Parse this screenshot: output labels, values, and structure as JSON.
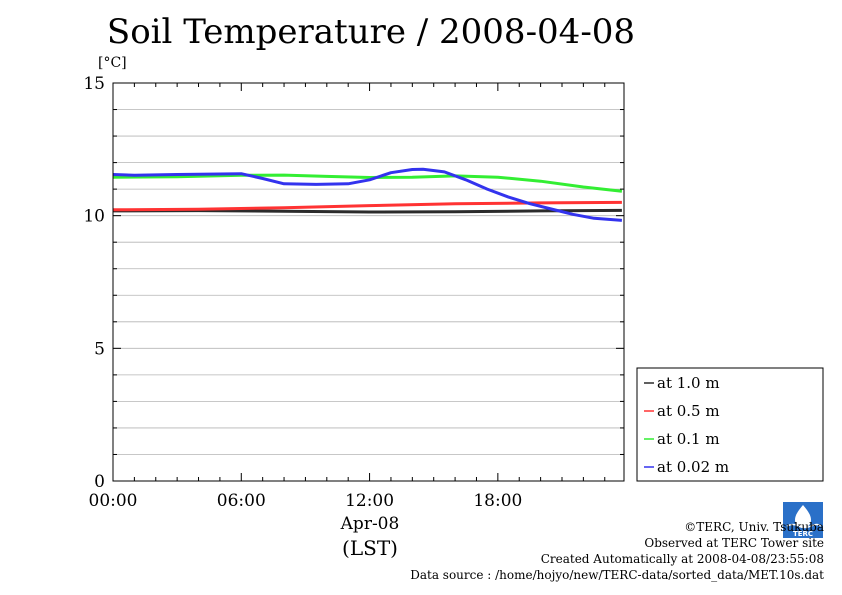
{
  "title": "Soil Temperature / 2008-04-08",
  "unit_label": "[°C]",
  "x_date_label": "Apr-08",
  "x_tz_label": "(LST)",
  "credits": {
    "line1": "©TERC, Univ. Tsukuba",
    "line2": "Observed at TERC Tower site",
    "line3": "Created Automatically at 2008-04-08/23:55:08",
    "line4": "Data source : /home/hojyo/new/TERC-data/sorted_data/MET.10s.dat"
  },
  "logo": {
    "text": "TERC",
    "icon": "terc-logo-icon",
    "color": "#2a70c8"
  },
  "chart_data": {
    "type": "line",
    "xlim": [
      0,
      23.9
    ],
    "ylim": [
      0,
      15
    ],
    "x_ticks": [
      0,
      6,
      12,
      18
    ],
    "x_tick_labels": [
      "00:00",
      "06:00",
      "12:00",
      "18:00"
    ],
    "y_ticks": [
      0,
      5,
      10,
      15
    ],
    "y_tick_labels": [
      "0",
      "5",
      "10",
      "15"
    ],
    "grid": "horizontal",
    "legend_position": "right-bottom",
    "series": [
      {
        "name": "at 1.0 m",
        "color": "#2b2b2b",
        "x": [
          0,
          4,
          8,
          12,
          16,
          20,
          23.8
        ],
        "y": [
          10.18,
          10.19,
          10.17,
          10.14,
          10.15,
          10.18,
          10.2
        ]
      },
      {
        "name": "at 0.5 m",
        "color": "#ff3333",
        "x": [
          0,
          4,
          8,
          12,
          16,
          20,
          23.8
        ],
        "y": [
          10.22,
          10.24,
          10.3,
          10.38,
          10.45,
          10.48,
          10.5
        ]
      },
      {
        "name": "at 0.1 m",
        "color": "#33ee33",
        "x": [
          0,
          3,
          6,
          8,
          10,
          12,
          14,
          16,
          18,
          20,
          22,
          23.8
        ],
        "y": [
          11.45,
          11.47,
          11.52,
          11.53,
          11.48,
          11.44,
          11.45,
          11.5,
          11.45,
          11.3,
          11.08,
          10.92
        ]
      },
      {
        "name": "at 0.02 m",
        "color": "#3333ee",
        "x": [
          0,
          1,
          3,
          6,
          7,
          8,
          9.5,
          11,
          12,
          13,
          14,
          14.5,
          15.5,
          16.5,
          17.5,
          18.5,
          19.5,
          20.5,
          21.5,
          22.5,
          23.8
        ],
        "y": [
          11.55,
          11.52,
          11.55,
          11.58,
          11.4,
          11.2,
          11.18,
          11.2,
          11.35,
          11.62,
          11.74,
          11.75,
          11.65,
          11.35,
          11.0,
          10.7,
          10.45,
          10.25,
          10.05,
          9.9,
          9.82
        ]
      }
    ]
  }
}
